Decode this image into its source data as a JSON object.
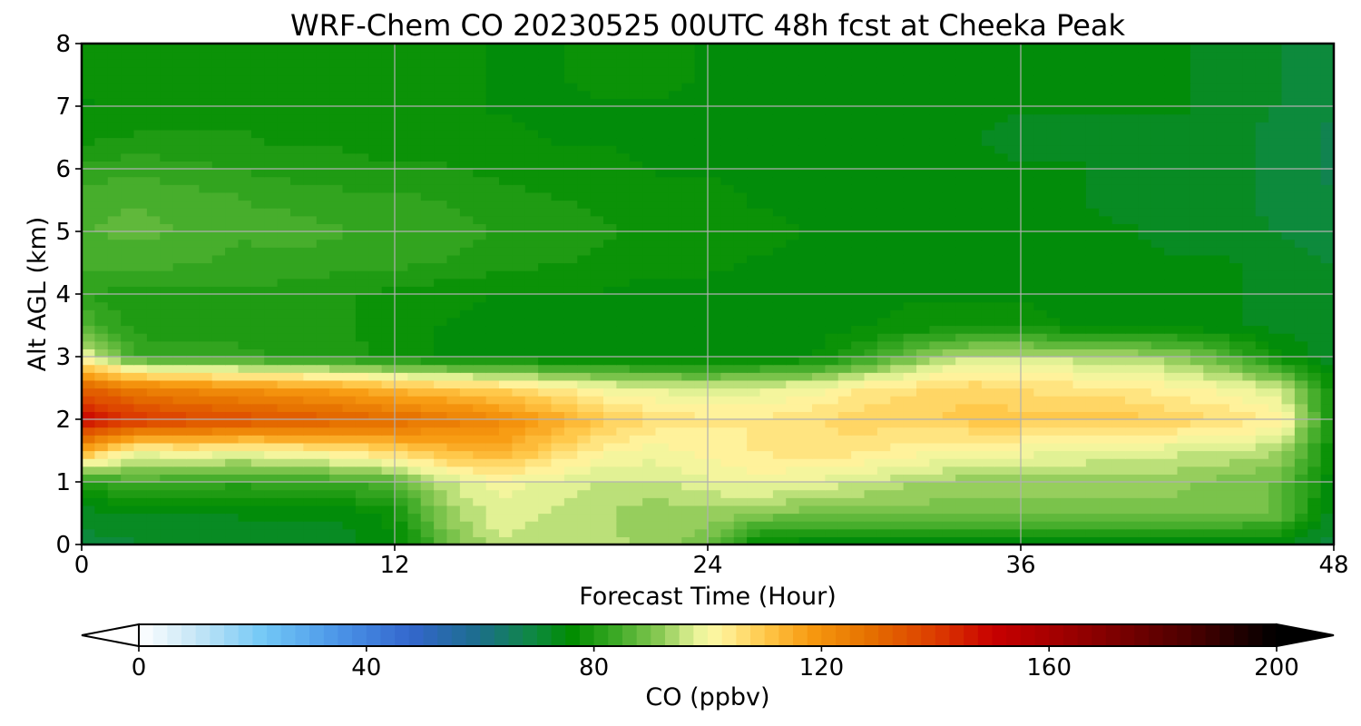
{
  "chart_data": {
    "type": "heatmap",
    "title": "WRF-Chem CO  20230525 00UTC 48h fcst at Cheeka Peak",
    "xlabel": "Forecast Time (Hour)",
    "ylabel": "Alt AGL (km)",
    "x_ticks": [
      "0",
      "12",
      "24",
      "36",
      "48"
    ],
    "y_ticks": [
      "0",
      "1",
      "2",
      "3",
      "4",
      "5",
      "6",
      "7",
      "8"
    ],
    "xlim": [
      0,
      48
    ],
    "ylim": [
      0,
      8
    ],
    "grid": true,
    "colorbar": {
      "label": "CO  (ppbv)",
      "ticks": [
        "0",
        "40",
        "80",
        "120",
        "160",
        "200"
      ],
      "range": [
        0,
        200
      ],
      "extend": "both",
      "orientation": "horizontal",
      "colors": [
        {
          "value": 0,
          "color": "#ffffff"
        },
        {
          "value": 10,
          "color": "#c6e6f6"
        },
        {
          "value": 22,
          "color": "#72c8f6"
        },
        {
          "value": 35,
          "color": "#4b95e8"
        },
        {
          "value": 48,
          "color": "#3366cc"
        },
        {
          "value": 60,
          "color": "#1c6e8a"
        },
        {
          "value": 70,
          "color": "#0d8a3c"
        },
        {
          "value": 76,
          "color": "#008c00"
        },
        {
          "value": 84,
          "color": "#3daa26"
        },
        {
          "value": 92,
          "color": "#8ecb57"
        },
        {
          "value": 98,
          "color": "#e8f49a"
        },
        {
          "value": 102,
          "color": "#fff5a0"
        },
        {
          "value": 110,
          "color": "#ffc84a"
        },
        {
          "value": 118,
          "color": "#f79a10"
        },
        {
          "value": 128,
          "color": "#e67200"
        },
        {
          "value": 140,
          "color": "#dc3c00"
        },
        {
          "value": 150,
          "color": "#c80000"
        },
        {
          "value": 165,
          "color": "#960000"
        },
        {
          "value": 185,
          "color": "#4a0000"
        },
        {
          "value": 200,
          "color": "#000000"
        }
      ]
    },
    "x_hours": [
      0,
      2,
      4,
      6,
      8,
      10,
      12,
      14,
      16,
      18,
      20,
      22,
      24,
      26,
      28,
      30,
      32,
      34,
      36,
      38,
      40,
      42,
      44,
      46,
      48
    ],
    "z_km": [
      0,
      0.5,
      1,
      1.5,
      2,
      2.5,
      3,
      3.5,
      4,
      4.5,
      5,
      5.5,
      6,
      6.5,
      7,
      7.5,
      8
    ],
    "co_ppbv": [
      [
        70,
        71,
        71,
        72,
        72,
        73,
        75,
        88,
        96,
        95,
        95,
        92,
        90,
        75,
        74,
        74,
        74,
        74,
        74,
        74,
        74,
        74,
        74,
        73,
        70
      ],
      [
        72,
        74,
        74,
        74,
        74,
        74,
        78,
        92,
        98,
        96,
        94,
        92,
        93,
        91,
        90,
        90,
        90,
        90,
        90,
        90,
        90,
        90,
        90,
        88,
        72
      ],
      [
        80,
        85,
        83,
        82,
        83,
        84,
        86,
        96,
        100,
        98,
        96,
        96,
        98,
        100,
        98,
        96,
        94,
        92,
        92,
        92,
        92,
        92,
        90,
        88,
        74
      ],
      [
        115,
        100,
        102,
        100,
        102,
        104,
        108,
        112,
        114,
        108,
        102,
        100,
        102,
        104,
        106,
        104,
        102,
        100,
        100,
        99,
        98,
        97,
        96,
        94,
        76
      ],
      [
        150,
        142,
        138,
        136,
        134,
        132,
        130,
        126,
        122,
        116,
        110,
        106,
        104,
        104,
        106,
        108,
        108,
        110,
        110,
        110,
        110,
        108,
        106,
        103,
        78
      ],
      [
        132,
        125,
        122,
        120,
        118,
        116,
        112,
        110,
        108,
        104,
        100,
        98,
        97,
        98,
        100,
        104,
        106,
        108,
        106,
        105,
        104,
        102,
        100,
        96,
        76
      ],
      [
        100,
        84,
        82,
        82,
        81,
        80,
        78,
        76,
        75,
        75,
        75,
        74,
        74,
        75,
        76,
        82,
        90,
        96,
        96,
        95,
        94,
        92,
        86,
        76,
        72
      ],
      [
        86,
        80,
        80,
        80,
        79,
        79,
        77,
        76,
        75,
        75,
        75,
        74,
        74,
        74,
        75,
        76,
        77,
        77,
        77,
        76,
        75,
        75,
        74,
        73,
        72
      ],
      [
        82,
        79,
        80,
        81,
        80,
        79,
        78,
        77,
        76,
        76,
        76,
        75,
        75,
        75,
        75,
        76,
        76,
        76,
        76,
        75,
        75,
        74,
        74,
        73,
        72
      ],
      [
        84,
        85,
        84,
        83,
        83,
        82,
        82,
        81,
        80,
        79,
        78,
        77,
        77,
        76,
        76,
        76,
        76,
        76,
        75,
        75,
        74,
        74,
        74,
        72,
        71
      ],
      [
        86,
        87,
        86,
        84,
        85,
        84,
        83,
        82,
        81,
        80,
        79,
        78,
        77,
        77,
        76,
        76,
        76,
        75,
        75,
        74,
        74,
        73,
        73,
        71,
        70
      ],
      [
        86,
        86,
        85,
        84,
        83,
        82,
        82,
        81,
        80,
        79,
        78,
        77,
        77,
        76,
        76,
        75,
        75,
        75,
        74,
        74,
        73,
        73,
        72,
        70,
        69
      ],
      [
        82,
        83,
        82,
        81,
        80,
        80,
        79,
        79,
        78,
        77,
        77,
        76,
        76,
        76,
        75,
        75,
        75,
        74,
        74,
        74,
        73,
        73,
        72,
        70,
        68
      ],
      [
        78,
        79,
        79,
        79,
        78,
        78,
        77,
        77,
        77,
        76,
        76,
        76,
        75,
        75,
        75,
        74,
        74,
        74,
        73,
        73,
        73,
        73,
        72,
        70,
        68
      ],
      [
        76,
        77,
        78,
        78,
        77,
        77,
        77,
        77,
        76,
        76,
        76,
        76,
        75,
        75,
        75,
        74,
        74,
        74,
        74,
        74,
        74,
        74,
        73,
        71,
        69
      ],
      [
        77,
        77,
        78,
        78,
        78,
        77,
        77,
        77,
        76,
        76,
        77,
        77,
        76,
        75,
        75,
        74,
        74,
        74,
        74,
        75,
        75,
        74,
        73,
        71,
        69
      ],
      [
        77,
        77,
        78,
        78,
        78,
        77,
        77,
        77,
        76,
        76,
        77,
        77,
        76,
        75,
        75,
        74,
        74,
        74,
        74,
        75,
        75,
        74,
        73,
        71,
        69
      ]
    ]
  }
}
